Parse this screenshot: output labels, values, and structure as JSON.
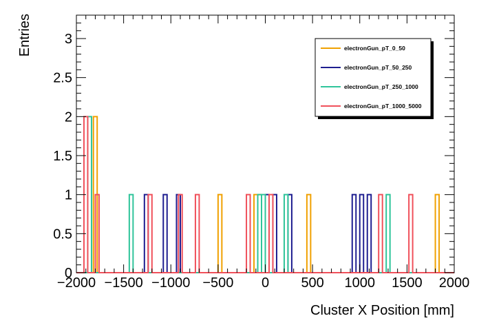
{
  "chart_data": {
    "type": "histogram",
    "title": "",
    "xlabel": "Cluster X Position [mm]",
    "ylabel": "Entries",
    "xlim": [
      -2000,
      2000
    ],
    "ylim": [
      0,
      3.3
    ],
    "x_ticks": [
      -2000,
      -1500,
      -1000,
      -500,
      0,
      500,
      1000,
      1500,
      2000
    ],
    "x_tick_labels": [
      "−2000",
      "−1500",
      "−1000",
      "−500",
      "0",
      "500",
      "1000",
      "1500",
      "2000"
    ],
    "y_ticks": [
      0,
      0.5,
      1,
      1.5,
      2,
      2.5,
      3
    ],
    "y_tick_labels": [
      "0",
      "0.5",
      "1",
      "1.5",
      "2",
      "2.5",
      "3"
    ],
    "bin_width": 40,
    "grid": false,
    "legend_position": "top-right",
    "series": [
      {
        "name": "electronGun_pT_0_50",
        "color": "#f0a000",
        "bins": [
          [
            -1820,
            2
          ],
          [
            -500,
            1
          ],
          [
            -120,
            1
          ],
          [
            -80,
            1
          ],
          [
            440,
            1
          ],
          [
            1800,
            1
          ]
        ]
      },
      {
        "name": "electronGun_pT_50_250",
        "color": "#1e1e90",
        "bins": [
          [
            -1280,
            1
          ],
          [
            -1080,
            1
          ],
          [
            -940,
            1
          ],
          [
            0,
            1
          ],
          [
            80,
            1
          ],
          [
            240,
            1
          ],
          [
            920,
            1
          ],
          [
            1000,
            1
          ],
          [
            1080,
            1
          ]
        ]
      },
      {
        "name": "electronGun_pT_250_1000",
        "color": "#2ec49a",
        "bins": [
          [
            -1880,
            2
          ],
          [
            -1440,
            1
          ],
          [
            -80,
            1
          ],
          [
            -40,
            1
          ],
          [
            200,
            1
          ],
          [
            1280,
            1
          ]
        ]
      },
      {
        "name": "electronGun_pT_1000_5000",
        "color": "#f0505a",
        "bins": [
          [
            -1920,
            2
          ],
          [
            -1800,
            1
          ],
          [
            -1240,
            1
          ],
          [
            -920,
            1
          ],
          [
            -740,
            1
          ],
          [
            -200,
            1
          ],
          [
            40,
            1
          ],
          [
            1200,
            1
          ],
          [
            1520,
            1
          ]
        ]
      }
    ]
  }
}
